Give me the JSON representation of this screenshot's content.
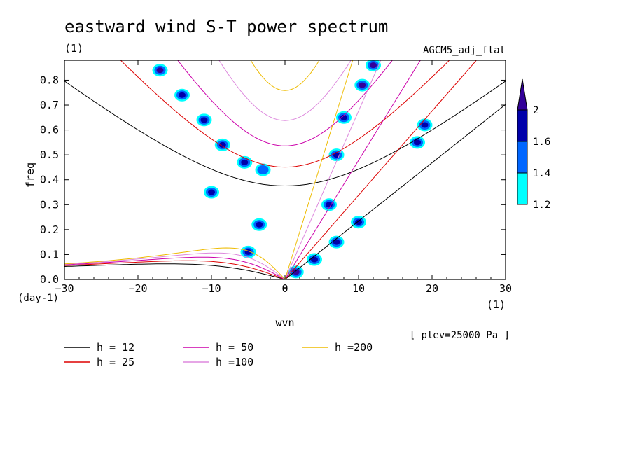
{
  "chart_data": {
    "type": "contour",
    "title": "eastward wind S-T power spectrum",
    "title_units": "(1)",
    "model_label": "AGCM5_adj_flat",
    "xlabel": "wvn",
    "ylabel": "freq",
    "xunit": "(1)",
    "yunit": "(day-1)",
    "xlim": [
      -30,
      30
    ],
    "ylim": [
      0,
      0.88
    ],
    "xticks": [
      -30,
      -20,
      -10,
      0,
      10,
      20,
      30
    ],
    "yticks": [
      0.0,
      0.1,
      0.2,
      0.3,
      0.4,
      0.5,
      0.6,
      0.7,
      0.8
    ],
    "level_note": "[ plev=25000 Pa ]",
    "colorbar": {
      "levels": [
        1.2,
        1.4,
        1.6,
        2
      ],
      "colors": [
        "#00ffff",
        "#0066ff",
        "#0000aa",
        "#330099"
      ],
      "labels": [
        "1.2",
        "1.4",
        "1.6",
        "2"
      ]
    },
    "dispersion_curves": [
      {
        "name": "h = 12",
        "h": 12,
        "color": "#000000"
      },
      {
        "name": "h = 25",
        "h": 25,
        "color": "#dd0000"
      },
      {
        "name": "h = 50",
        "h": 50,
        "color": "#cc00aa"
      },
      {
        "name": "h =100",
        "h": 100,
        "color": "#dd88dd"
      },
      {
        "name": "h =200",
        "h": 200,
        "color": "#eebb00"
      }
    ],
    "spectral_peaks": [
      {
        "wvn": -17,
        "freq": 0.84,
        "level": 2
      },
      {
        "wvn": -14,
        "freq": 0.74,
        "level": 1.6
      },
      {
        "wvn": -11,
        "freq": 0.64,
        "level": 1.6
      },
      {
        "wvn": -8.5,
        "freq": 0.54,
        "level": 1.6
      },
      {
        "wvn": -5.5,
        "freq": 0.47,
        "level": 1.6
      },
      {
        "wvn": -3,
        "freq": 0.44,
        "level": 1.4
      },
      {
        "wvn": -10,
        "freq": 0.35,
        "level": 1.6
      },
      {
        "wvn": -3.5,
        "freq": 0.22,
        "level": 1.6
      },
      {
        "wvn": -5,
        "freq": 0.11,
        "level": 1.6
      },
      {
        "wvn": 1.5,
        "freq": 0.03,
        "level": 2
      },
      {
        "wvn": 4,
        "freq": 0.08,
        "level": 1.6
      },
      {
        "wvn": 7,
        "freq": 0.15,
        "level": 1.6
      },
      {
        "wvn": 10,
        "freq": 0.23,
        "level": 1.6
      },
      {
        "wvn": 6,
        "freq": 0.3,
        "level": 1.6
      },
      {
        "wvn": 7,
        "freq": 0.5,
        "level": 1.6
      },
      {
        "wvn": 8,
        "freq": 0.65,
        "level": 1.6
      },
      {
        "wvn": 10.5,
        "freq": 0.78,
        "level": 2
      },
      {
        "wvn": 12,
        "freq": 0.86,
        "level": 2
      },
      {
        "wvn": 18,
        "freq": 0.55,
        "level": 1.6
      },
      {
        "wvn": 19,
        "freq": 0.62,
        "level": 1.6
      }
    ]
  }
}
